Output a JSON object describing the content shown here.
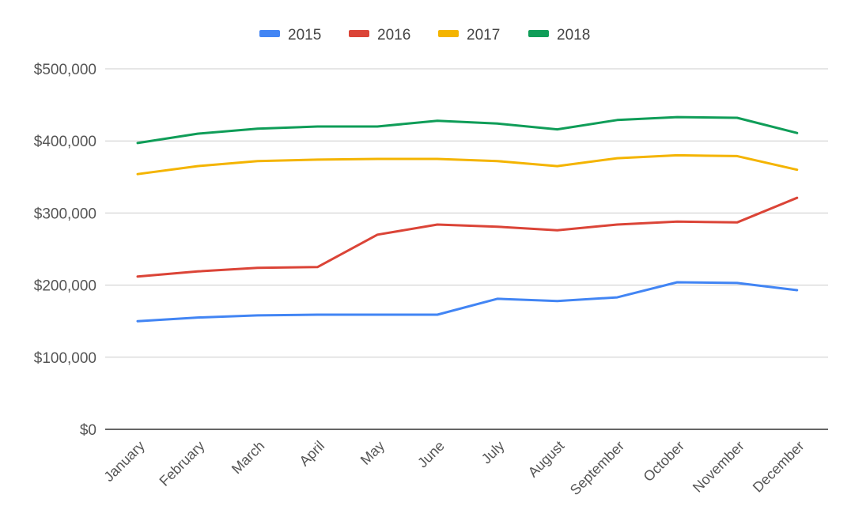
{
  "chart_data": {
    "type": "line",
    "title": "",
    "xlabel": "",
    "ylabel": "",
    "categories": [
      "January",
      "February",
      "March",
      "April",
      "May",
      "June",
      "July",
      "August",
      "September",
      "October",
      "November",
      "December"
    ],
    "y_ticks": [
      "$0",
      "$100,000",
      "$200,000",
      "$300,000",
      "$400,000",
      "$500,000"
    ],
    "ylim": [
      0,
      500000
    ],
    "grid": true,
    "legend_position": "top",
    "series": [
      {
        "name": "2015",
        "color": "#4285f4",
        "values": [
          150000,
          155000,
          158000,
          159000,
          159000,
          159000,
          181000,
          178000,
          183000,
          204000,
          203000,
          193000
        ]
      },
      {
        "name": "2016",
        "color": "#db4437",
        "values": [
          212000,
          219000,
          224000,
          225000,
          270000,
          284000,
          281000,
          276000,
          284000,
          288000,
          287000,
          321000
        ]
      },
      {
        "name": "2017",
        "color": "#f4b400",
        "values": [
          354000,
          365000,
          372000,
          374000,
          375000,
          375000,
          372000,
          365000,
          376000,
          380000,
          379000,
          360000
        ]
      },
      {
        "name": "2018",
        "color": "#0f9d58",
        "values": [
          397000,
          410000,
          417000,
          420000,
          420000,
          428000,
          424000,
          416000,
          429000,
          433000,
          432000,
          411000
        ]
      }
    ]
  }
}
